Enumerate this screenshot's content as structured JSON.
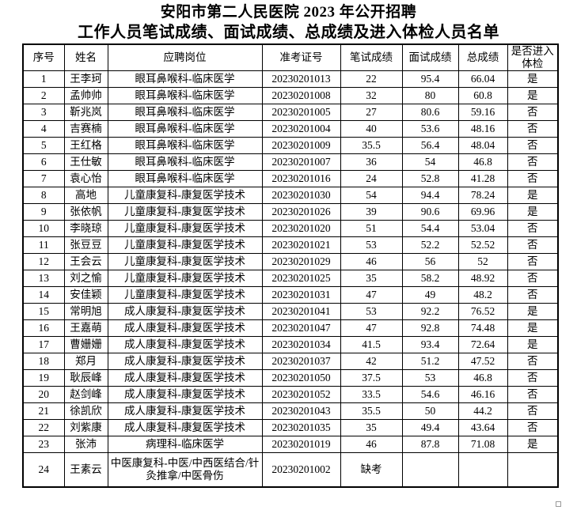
{
  "page": {
    "title": "安阳市第二人民医院 2023 年公开招聘",
    "subtitle": "工作人员笔试成绩、面试成绩、总成绩及进入体检人员名单"
  },
  "colors": {
    "background": "#ffffff",
    "text": "#000000",
    "table_border": "#000000",
    "resize_handle_border": "#9a9a9a"
  },
  "icons": {
    "resize_handle": "table-resize-handle-square"
  },
  "table": {
    "headers": [
      "序号",
      "姓名",
      "应聘岗位",
      "准考证号",
      "笔试成绩",
      "面试成绩",
      "总成绩",
      "是否进入体检"
    ],
    "rows": [
      [
        "1",
        "王李珂",
        "眼耳鼻喉科-临床医学",
        "20230201013",
        "22",
        "95.4",
        "66.04",
        "是"
      ],
      [
        "2",
        "孟帅帅",
        "眼耳鼻喉科-临床医学",
        "20230201008",
        "32",
        "80",
        "60.8",
        "是"
      ],
      [
        "3",
        "靳兆岚",
        "眼耳鼻喉科-临床医学",
        "20230201005",
        "27",
        "80.6",
        "59.16",
        "否"
      ],
      [
        "4",
        "吉赛楠",
        "眼耳鼻喉科-临床医学",
        "20230201004",
        "40",
        "53.6",
        "48.16",
        "否"
      ],
      [
        "5",
        "王红格",
        "眼耳鼻喉科-临床医学",
        "20230201009",
        "35.5",
        "56.4",
        "48.04",
        "否"
      ],
      [
        "6",
        "王仕敏",
        "眼耳鼻喉科-临床医学",
        "20230201007",
        "36",
        "54",
        "46.8",
        "否"
      ],
      [
        "7",
        "袁心怡",
        "眼耳鼻喉科-临床医学",
        "20230201016",
        "24",
        "52.8",
        "41.28",
        "否"
      ],
      [
        "8",
        "高地",
        "儿童康复科-康复医学技术",
        "20230201030",
        "54",
        "94.4",
        "78.24",
        "是"
      ],
      [
        "9",
        "张依帆",
        "儿童康复科-康复医学技术",
        "20230201026",
        "39",
        "90.6",
        "69.96",
        "是"
      ],
      [
        "10",
        "李晓琼",
        "儿童康复科-康复医学技术",
        "20230201020",
        "51",
        "54.4",
        "53.04",
        "否"
      ],
      [
        "11",
        "张豆豆",
        "儿童康复科-康复医学技术",
        "20230201021",
        "53",
        "52.2",
        "52.52",
        "否"
      ],
      [
        "12",
        "王会云",
        "儿童康复科-康复医学技术",
        "20230201029",
        "46",
        "56",
        "52",
        "否"
      ],
      [
        "13",
        "刘之愉",
        "儿童康复科-康复医学技术",
        "20230201025",
        "35",
        "58.2",
        "48.92",
        "否"
      ],
      [
        "14",
        "安佳颖",
        "儿童康复科-康复医学技术",
        "20230201031",
        "47",
        "49",
        "48.2",
        "否"
      ],
      [
        "15",
        "常明旭",
        "成人康复科-康复医学技术",
        "20230201041",
        "53",
        "92.2",
        "76.52",
        "是"
      ],
      [
        "16",
        "王嘉萌",
        "成人康复科-康复医学技术",
        "20230201047",
        "47",
        "92.8",
        "74.48",
        "是"
      ],
      [
        "17",
        "曹姗姗",
        "成人康复科-康复医学技术",
        "20230201034",
        "41.5",
        "93.4",
        "72.64",
        "是"
      ],
      [
        "18",
        "郑月",
        "成人康复科-康复医学技术",
        "20230201037",
        "42",
        "51.2",
        "47.52",
        "否"
      ],
      [
        "19",
        "耿辰峰",
        "成人康复科-康复医学技术",
        "20230201050",
        "37.5",
        "53",
        "46.8",
        "否"
      ],
      [
        "20",
        "赵剑峰",
        "成人康复科-康复医学技术",
        "20230201052",
        "33.5",
        "54.6",
        "46.16",
        "否"
      ],
      [
        "21",
        "徐凯欣",
        "成人康复科-康复医学技术",
        "20230201043",
        "35.5",
        "50",
        "44.2",
        "否"
      ],
      [
        "22",
        "刘紫康",
        "成人康复科-康复医学技术",
        "20230201035",
        "35",
        "49.4",
        "43.64",
        "否"
      ],
      [
        "23",
        "张沛",
        "病理科-临床医学",
        "20230201019",
        "46",
        "87.8",
        "71.08",
        "是"
      ],
      [
        "24",
        "王素云",
        "中医康复科-中医/中西医结合/针灸推拿/中医骨伤",
        "20230201002",
        "缺考",
        "",
        "",
        ""
      ]
    ]
  }
}
